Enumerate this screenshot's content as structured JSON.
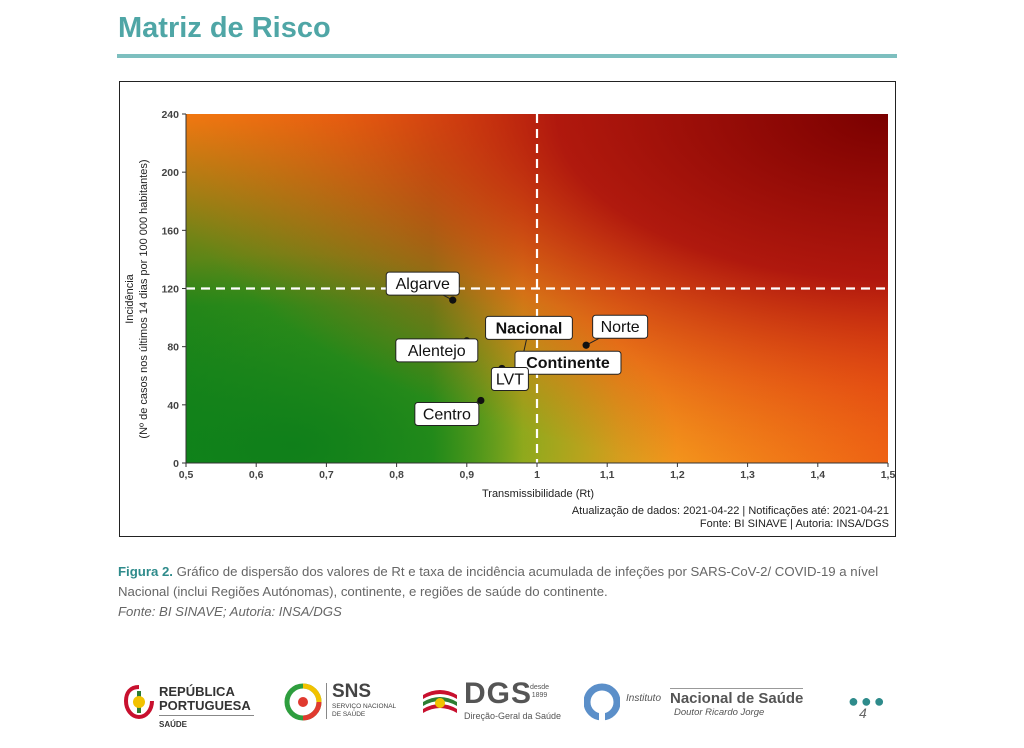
{
  "page": {
    "title": "Matriz de Risco",
    "page_number": "4"
  },
  "caption": {
    "figure_label": "Figura 2.",
    "text": " Gráfico de dispersão dos valores de Rt e taxa de incidência acumulada de infeções por SARS-CoV-2/ COVID-19 a nível Nacional (inclui Regiões Autónomas), continente, e regiões de saúde do continente.",
    "source": "Fonte: BI SINAVE; Autoria: INSA/DGS"
  },
  "logos": {
    "rp_line1": "REPÚBLICA",
    "rp_line2": "PORTUGUESA",
    "rp_line3": "SAÚDE",
    "sns_line1": "SNS",
    "sns_line2": "SERVIÇO NACIONAL",
    "sns_line3": "DE SAÚDE",
    "dgs_line1": "DGS",
    "dgs_since": "desde",
    "dgs_year": "1899",
    "dgs_line2": "Direção-Geral da Saúde",
    "insa_prefix": "Instituto",
    "insa_name": "Nacional de Saúde",
    "insa_sub": "Doutor Ricardo Jorge"
  },
  "chart_data": {
    "type": "scatter",
    "xlabel": "Transmissibilidade (Rt)",
    "ylabel_line1": "Incidência",
    "ylabel_line2": "(Nº de casos nos últimos 14 dias por 100 000 habitantes)",
    "xlim": [
      0.5,
      1.5
    ],
    "ylim": [
      0,
      240
    ],
    "x_ticks": [
      "0,5",
      "0,6",
      "0,7",
      "0,8",
      "0,9",
      "1",
      "1,1",
      "1,2",
      "1,3",
      "1,4",
      "1,5"
    ],
    "y_ticks": [
      "0",
      "40",
      "80",
      "120",
      "160",
      "200",
      "240"
    ],
    "thresholds": {
      "x": 1.0,
      "y": 120
    },
    "colors": {
      "low": "#1b8a1b",
      "mid": "#e8c21e",
      "high": "#8b0000",
      "accent": "#ff7f0e"
    },
    "points": [
      {
        "label": "Algarve",
        "x": 0.88,
        "y": 112,
        "bold": false
      },
      {
        "label": "Alentejo",
        "x": 0.9,
        "y": 84,
        "bold": false
      },
      {
        "label": "Nacional",
        "x": 0.98,
        "y": 74,
        "bold": true
      },
      {
        "label": "Continente",
        "x": 0.99,
        "y": 70,
        "bold": true
      },
      {
        "label": "LVT",
        "x": 0.95,
        "y": 65,
        "bold": false
      },
      {
        "label": "Centro",
        "x": 0.92,
        "y": 43,
        "bold": false
      },
      {
        "label": "Norte",
        "x": 1.07,
        "y": 81,
        "bold": false
      }
    ],
    "footer_line1": "Atualização de dados: 2021-04-22 | Notificações até: 2021-04-21",
    "footer_line2": "Fonte: BI SINAVE | Autoria: INSA/DGS"
  }
}
